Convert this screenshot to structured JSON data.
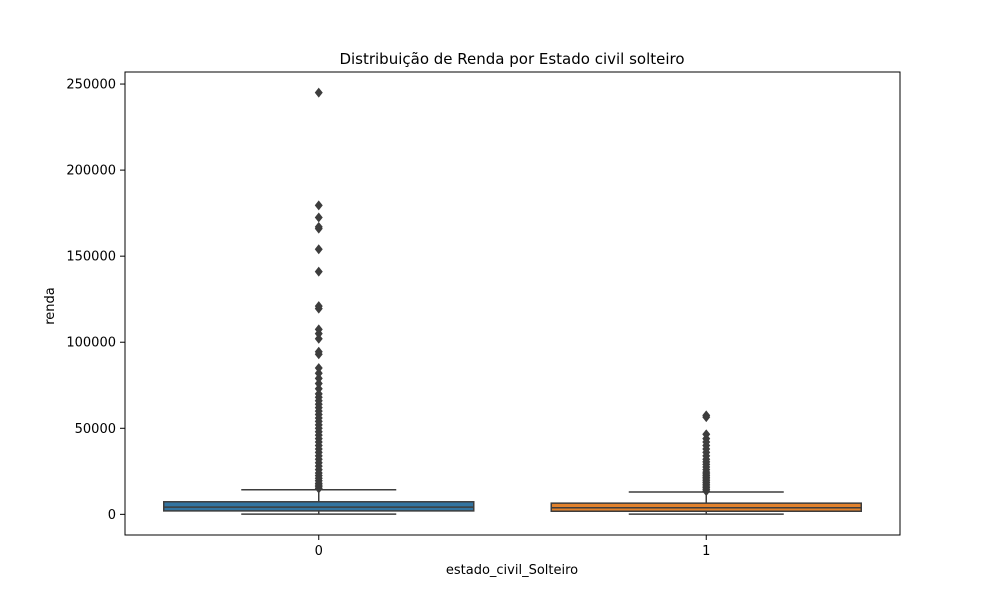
{
  "chart_data": {
    "type": "box",
    "title": "Distribuição de Renda por Estado civil solteiro",
    "xlabel": "estado_civil_Solteiro",
    "ylabel": "renda",
    "ylim": [
      -12000,
      257000
    ],
    "yticks": [
      0,
      50000,
      100000,
      150000,
      200000,
      250000
    ],
    "yticklabels": [
      "0",
      "50000",
      "100000",
      "150000",
      "200000",
      "250000"
    ],
    "grid": false,
    "categories": [
      "0",
      "1"
    ],
    "boxes": [
      {
        "category": "0",
        "color": "#3274a1",
        "min": 100,
        "q1": 2000,
        "median": 4200,
        "q3": 7300,
        "whisker_high": 14300,
        "outliers": [
          15000,
          16000,
          17000,
          18000,
          19500,
          21000,
          22500,
          24000,
          26000,
          28000,
          30000,
          32000,
          34000,
          36000,
          38000,
          40000,
          42000,
          44000,
          46000,
          48000,
          50000,
          52000,
          54000,
          56000,
          58000,
          60000,
          62000,
          64000,
          66000,
          68000,
          70000,
          73000,
          76000,
          79000,
          82000,
          85000,
          93000,
          94500,
          102000,
          105000,
          107500,
          119500,
          121000,
          141000,
          154000,
          166000,
          167000,
          172500,
          179500,
          245000
        ]
      },
      {
        "category": "1",
        "color": "#e1812c",
        "min": 100,
        "q1": 1800,
        "median": 3800,
        "q3": 6500,
        "whisker_high": 13000,
        "outliers": [
          13500,
          14500,
          15500,
          16500,
          17500,
          18500,
          19500,
          20500,
          21500,
          22500,
          23500,
          24500,
          26000,
          27500,
          29000,
          30500,
          32000,
          34000,
          36000,
          38000,
          40000,
          42000,
          44000,
          46500,
          56500,
          57500
        ]
      }
    ]
  }
}
